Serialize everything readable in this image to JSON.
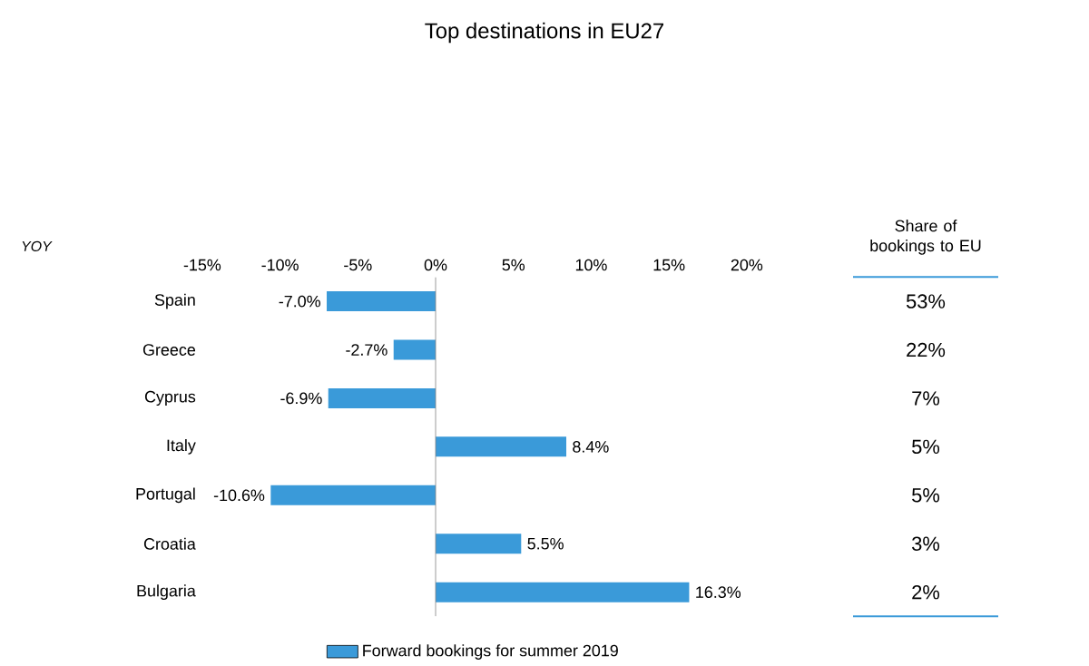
{
  "chart_data": {
    "type": "bar",
    "orientation": "horizontal",
    "title": "Top destinations in EU27",
    "categories": [
      "Spain",
      "Greece",
      "Cyprus",
      "Italy",
      "Portugal",
      "Croatia",
      "Bulgaria"
    ],
    "series": [
      {
        "name": "Forward bookings for summer 2019",
        "color": "#3a9ad9",
        "values": [
          -7.0,
          -2.7,
          -6.9,
          8.4,
          -10.6,
          5.5,
          16.3
        ],
        "value_labels": [
          "-7.0%",
          "-2.7%",
          "-6.9%",
          "8.4%",
          "-10.6%",
          "5.5%",
          "16.3%"
        ]
      }
    ],
    "xlim": [
      -15,
      20
    ],
    "xticks": [
      {
        "value": -15,
        "label": "-15%"
      },
      {
        "value": -10,
        "label": "-10%"
      },
      {
        "value": -5,
        "label": "-5%"
      },
      {
        "value": 0,
        "label": "0%"
      },
      {
        "value": 5,
        "label": "5%"
      },
      {
        "value": 10,
        "label": "10%"
      },
      {
        "value": 15,
        "label": "15%"
      },
      {
        "value": 20,
        "label": "20%"
      }
    ],
    "ref_lines": [
      {
        "axis": "x",
        "value": 0,
        "color": "#808080"
      }
    ],
    "legend": "bottom",
    "annotations": [
      "YOY",
      "Share of bookings to EU",
      "53%",
      "22%",
      "7%",
      "5%",
      "5%",
      "3%",
      "2%"
    ]
  }
}
